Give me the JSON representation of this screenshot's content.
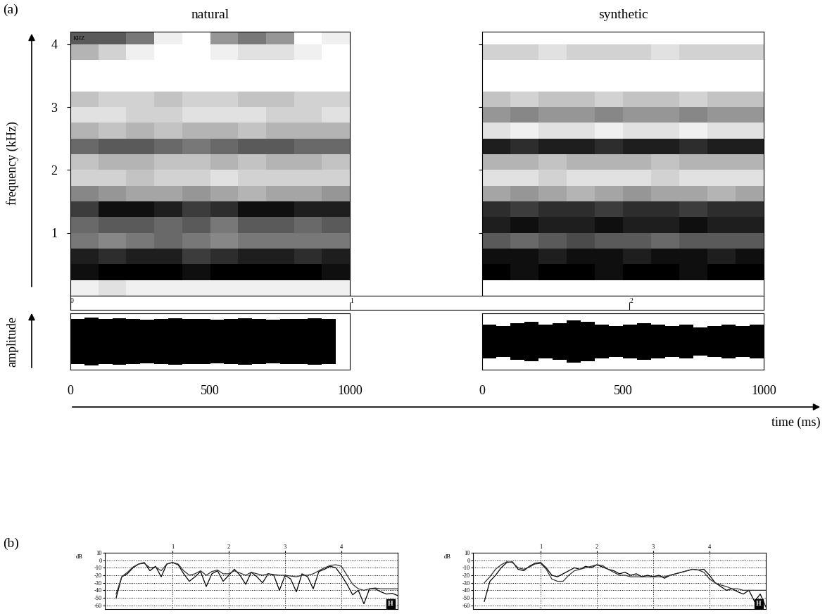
{
  "chart_data": [
    {
      "type": "spectrogram",
      "title": "natural",
      "panel_label": "(a)",
      "ylabel": "frequency (kHz)",
      "annotation": "KHZ",
      "xlim": [
        0,
        1000
      ],
      "ylim": [
        0,
        4.2
      ],
      "yticks": [
        1,
        2,
        3,
        4
      ],
      "tick_labels": "y",
      "x_edges": [
        0,
        100,
        200,
        300,
        400,
        500,
        600,
        700,
        800,
        900,
        1000
      ],
      "y_edges": [
        0,
        0.25,
        0.5,
        0.75,
        1.0,
        1.25,
        1.5,
        1.75,
        2.0,
        2.25,
        2.5,
        2.75,
        3.0,
        3.25,
        3.5,
        3.75,
        4.0,
        4.25
      ],
      "cells": [
        [
          0.1,
          0.15,
          0.1,
          0.1,
          0.1,
          0.1,
          0.1,
          0.1,
          0.1,
          0.1
        ],
        [
          0.85,
          0.9,
          0.9,
          0.9,
          0.85,
          0.9,
          0.9,
          0.9,
          0.9,
          0.85
        ],
        [
          0.8,
          0.75,
          0.8,
          0.8,
          0.7,
          0.75,
          0.8,
          0.8,
          0.75,
          0.8
        ],
        [
          0.5,
          0.45,
          0.5,
          0.55,
          0.5,
          0.45,
          0.5,
          0.5,
          0.5,
          0.5
        ],
        [
          0.55,
          0.6,
          0.6,
          0.55,
          0.6,
          0.5,
          0.6,
          0.6,
          0.55,
          0.6
        ],
        [
          0.7,
          0.85,
          0.85,
          0.8,
          0.7,
          0.75,
          0.85,
          0.85,
          0.8,
          0.8
        ],
        [
          0.45,
          0.4,
          0.35,
          0.35,
          0.4,
          0.35,
          0.3,
          0.35,
          0.35,
          0.4
        ],
        [
          0.2,
          0.2,
          0.25,
          0.2,
          0.2,
          0.15,
          0.2,
          0.2,
          0.2,
          0.2
        ],
        [
          0.25,
          0.3,
          0.3,
          0.25,
          0.25,
          0.3,
          0.25,
          0.3,
          0.3,
          0.25
        ],
        [
          0.55,
          0.6,
          0.6,
          0.55,
          0.5,
          0.55,
          0.6,
          0.6,
          0.55,
          0.55
        ],
        [
          0.3,
          0.25,
          0.3,
          0.25,
          0.3,
          0.3,
          0.25,
          0.3,
          0.3,
          0.3
        ],
        [
          0.15,
          0.15,
          0.2,
          0.2,
          0.15,
          0.15,
          0.15,
          0.2,
          0.2,
          0.15
        ],
        [
          0.25,
          0.2,
          0.2,
          0.25,
          0.2,
          0.2,
          0.25,
          0.25,
          0.2,
          0.2
        ],
        [
          0.05,
          0.05,
          0.05,
          0.05,
          0.05,
          0.05,
          0.05,
          0.05,
          0.05,
          0.05
        ],
        [
          0.05,
          0.05,
          0.05,
          0.05,
          0.05,
          0.05,
          0.05,
          0.05,
          0.05,
          0.05
        ],
        [
          0.3,
          0.2,
          0.1,
          0.05,
          0.05,
          0.1,
          0.15,
          0.15,
          0.1,
          0.05
        ],
        [
          0.6,
          0.6,
          0.5,
          0.1,
          0.05,
          0.4,
          0.5,
          0.4,
          0.05,
          0.1
        ]
      ]
    },
    {
      "type": "spectrogram",
      "title": "synthetic",
      "xlim": [
        0,
        1000
      ],
      "ylim": [
        0,
        4.2
      ],
      "yticks": [
        1,
        2,
        3,
        4
      ],
      "tick_labels": false,
      "x_edges": [
        0,
        100,
        200,
        300,
        400,
        500,
        600,
        700,
        800,
        900,
        1000
      ],
      "y_edges": [
        0,
        0.25,
        0.5,
        0.75,
        1.0,
        1.25,
        1.5,
        1.75,
        2.0,
        2.25,
        2.5,
        2.75,
        3.0,
        3.25,
        3.5,
        3.75,
        4.0,
        4.25
      ],
      "cells": [
        [
          0.05,
          0.05,
          0.05,
          0.05,
          0.05,
          0.05,
          0.05,
          0.05,
          0.05,
          0.05
        ],
        [
          0.9,
          0.85,
          0.9,
          0.9,
          0.85,
          0.9,
          0.9,
          0.85,
          0.9,
          0.9
        ],
        [
          0.85,
          0.85,
          0.8,
          0.85,
          0.85,
          0.8,
          0.85,
          0.85,
          0.8,
          0.85
        ],
        [
          0.6,
          0.55,
          0.6,
          0.65,
          0.6,
          0.6,
          0.55,
          0.6,
          0.6,
          0.6
        ],
        [
          0.8,
          0.85,
          0.8,
          0.8,
          0.85,
          0.8,
          0.8,
          0.85,
          0.8,
          0.8
        ],
        [
          0.75,
          0.7,
          0.75,
          0.75,
          0.7,
          0.75,
          0.75,
          0.7,
          0.75,
          0.75
        ],
        [
          0.35,
          0.4,
          0.35,
          0.3,
          0.35,
          0.4,
          0.35,
          0.35,
          0.3,
          0.35
        ],
        [
          0.15,
          0.15,
          0.2,
          0.15,
          0.15,
          0.15,
          0.2,
          0.15,
          0.15,
          0.15
        ],
        [
          0.3,
          0.3,
          0.25,
          0.3,
          0.3,
          0.3,
          0.25,
          0.3,
          0.3,
          0.3
        ],
        [
          0.8,
          0.75,
          0.8,
          0.8,
          0.75,
          0.8,
          0.8,
          0.75,
          0.8,
          0.8
        ],
        [
          0.15,
          0.1,
          0.15,
          0.15,
          0.1,
          0.15,
          0.15,
          0.1,
          0.15,
          0.15
        ],
        [
          0.4,
          0.45,
          0.4,
          0.4,
          0.45,
          0.4,
          0.4,
          0.45,
          0.4,
          0.4
        ],
        [
          0.25,
          0.2,
          0.25,
          0.25,
          0.2,
          0.25,
          0.25,
          0.2,
          0.25,
          0.25
        ],
        [
          0.05,
          0.05,
          0.05,
          0.05,
          0.05,
          0.05,
          0.05,
          0.05,
          0.05,
          0.05
        ],
        [
          0.05,
          0.05,
          0.05,
          0.05,
          0.05,
          0.05,
          0.05,
          0.05,
          0.05,
          0.05
        ],
        [
          0.2,
          0.2,
          0.15,
          0.2,
          0.2,
          0.2,
          0.15,
          0.2,
          0.2,
          0.2
        ],
        [
          0.05,
          0.05,
          0.05,
          0.05,
          0.05,
          0.05,
          0.05,
          0.05,
          0.05,
          0.05
        ]
      ]
    },
    {
      "type": "ruler",
      "xlim": [
        0,
        2.48
      ],
      "xticks": [
        0,
        1,
        2
      ],
      "tick_labels": "x"
    },
    {
      "type": "envelope",
      "ylabel": "amplitude",
      "color": "#000000",
      "xlim": [
        0,
        1000
      ],
      "xticks": [
        0,
        500,
        1000
      ],
      "ylim": [
        -1,
        1
      ],
      "tick_labels": "x",
      "x": [
        0,
        50,
        100,
        150,
        200,
        250,
        300,
        350,
        400,
        450,
        500,
        550,
        600,
        650,
        700,
        750,
        800,
        850,
        900,
        950
      ],
      "values": [
        0.8,
        0.85,
        0.8,
        0.82,
        0.8,
        0.78,
        0.8,
        0.82,
        0.8,
        0.8,
        0.78,
        0.8,
        0.82,
        0.8,
        0.78,
        0.8,
        0.8,
        0.82,
        0.8,
        0.78
      ]
    },
    {
      "type": "envelope",
      "xlabel": "time (ms)",
      "color": "#000000",
      "xlim": [
        0,
        1000
      ],
      "xticks": [
        0,
        500,
        1000
      ],
      "ylim": [
        -1,
        1
      ],
      "tick_labels": "x",
      "x": [
        0,
        50,
        100,
        150,
        200,
        250,
        300,
        350,
        400,
        450,
        500,
        550,
        600,
        650,
        700,
        750,
        800,
        850,
        900,
        950,
        1000
      ],
      "values": [
        0.6,
        0.55,
        0.65,
        0.7,
        0.6,
        0.65,
        0.75,
        0.7,
        0.6,
        0.55,
        0.6,
        0.65,
        0.6,
        0.55,
        0.6,
        0.5,
        0.55,
        0.6,
        0.55,
        0.6,
        0.6
      ]
    },
    {
      "type": "line",
      "panel_label": "(b)",
      "ylabel": "dB",
      "annotation": "H",
      "grid": true,
      "xlim": [
        -0.2,
        5.0
      ],
      "xticks": [
        1,
        2,
        3,
        4
      ],
      "ylim": [
        -65,
        10
      ],
      "yticks": [
        10,
        0,
        -10,
        -20,
        -30,
        -40,
        -50,
        -60
      ],
      "x": [
        0.0,
        0.1,
        0.2,
        0.3,
        0.4,
        0.5,
        0.6,
        0.7,
        0.8,
        0.9,
        1.0,
        1.1,
        1.2,
        1.3,
        1.4,
        1.5,
        1.6,
        1.7,
        1.8,
        1.9,
        2.0,
        2.1,
        2.2,
        2.3,
        2.4,
        2.5,
        2.6,
        2.7,
        2.8,
        2.9,
        3.0,
        3.1,
        3.2,
        3.3,
        3.4,
        3.5,
        3.6,
        3.7,
        3.8,
        3.9,
        4.0,
        4.1,
        4.2,
        4.3,
        4.4,
        4.5,
        4.6,
        4.7,
        4.8,
        4.9,
        5.0
      ],
      "series": [
        {
          "color": "#000000",
          "line_style": "solid",
          "values": [
            -50,
            -22,
            -18,
            -10,
            -5,
            -3,
            -14,
            -8,
            -22,
            -5,
            -3,
            -6,
            -18,
            -28,
            -22,
            -15,
            -35,
            -18,
            -14,
            -28,
            -20,
            -12,
            -20,
            -32,
            -16,
            -22,
            -30,
            -18,
            -20,
            -40,
            -20,
            -25,
            -42,
            -18,
            -22,
            -38,
            -15,
            -12,
            -8,
            -10,
            -20,
            -32,
            -46,
            -40,
            -58,
            -38,
            -38,
            -42,
            -45,
            -44,
            -47
          ]
        },
        {
          "color": "#333333",
          "line_style": "solid",
          "values": [
            -45,
            -22,
            -16,
            -9,
            -5,
            -4,
            -10,
            -9,
            -14,
            -5,
            -3,
            -5,
            -14,
            -20,
            -18,
            -14,
            -20,
            -15,
            -13,
            -18,
            -18,
            -14,
            -17,
            -20,
            -16,
            -18,
            -20,
            -18,
            -19,
            -20,
            -20,
            -21,
            -22,
            -20,
            -20,
            -18,
            -14,
            -10,
            -7,
            -6,
            -8,
            -20,
            -32,
            -38,
            -40,
            -38,
            -37,
            -38,
            -38,
            -38,
            -38
          ]
        }
      ]
    },
    {
      "type": "line",
      "ylabel": "dB",
      "annotation": "H",
      "grid": true,
      "xlim": [
        -0.2,
        5.0
      ],
      "xticks": [
        1,
        2,
        3,
        4
      ],
      "ylim": [
        -65,
        10
      ],
      "yticks": [
        10,
        0,
        -10,
        -20,
        -30,
        -40,
        -50,
        -60
      ],
      "x": [
        0.0,
        0.1,
        0.2,
        0.3,
        0.4,
        0.5,
        0.6,
        0.7,
        0.8,
        0.9,
        1.0,
        1.1,
        1.2,
        1.3,
        1.4,
        1.5,
        1.6,
        1.7,
        1.8,
        1.9,
        2.0,
        2.1,
        2.2,
        2.3,
        2.4,
        2.5,
        2.6,
        2.7,
        2.8,
        2.9,
        3.0,
        3.1,
        3.2,
        3.3,
        3.4,
        3.5,
        3.6,
        3.7,
        3.8,
        3.9,
        4.0,
        4.1,
        4.2,
        4.3,
        4.4,
        4.5,
        4.6,
        4.7,
        4.8,
        4.9,
        5.0
      ],
      "series": [
        {
          "color": "#000000",
          "line_style": "solid",
          "values": [
            -55,
            -28,
            -20,
            -10,
            -3,
            -2,
            -12,
            -14,
            -8,
            -4,
            -3,
            -10,
            -20,
            -22,
            -18,
            -14,
            -10,
            -12,
            -8,
            -10,
            -6,
            -9,
            -12,
            -14,
            -18,
            -16,
            -20,
            -18,
            -22,
            -20,
            -22,
            -20,
            -24,
            -20,
            -18,
            -16,
            -14,
            -12,
            -13,
            -12,
            -20,
            -30,
            -35,
            -40,
            -38,
            -42,
            -45,
            -40,
            -55,
            -45,
            -62
          ]
        },
        {
          "color": "#333333",
          "line_style": "solid",
          "values": [
            -30,
            -22,
            -12,
            -6,
            -2,
            -3,
            -10,
            -12,
            -9,
            -5,
            -4,
            -12,
            -25,
            -28,
            -28,
            -20,
            -14,
            -12,
            -10,
            -8,
            -6,
            -7,
            -12,
            -16,
            -20,
            -20,
            -22,
            -22,
            -22,
            -22,
            -22,
            -22,
            -22,
            -20,
            -18,
            -16,
            -14,
            -12,
            -13,
            -16,
            -25,
            -30,
            -33,
            -35,
            -38,
            -38,
            -40,
            -40,
            -40,
            -40,
            -40
          ]
        }
      ]
    }
  ]
}
